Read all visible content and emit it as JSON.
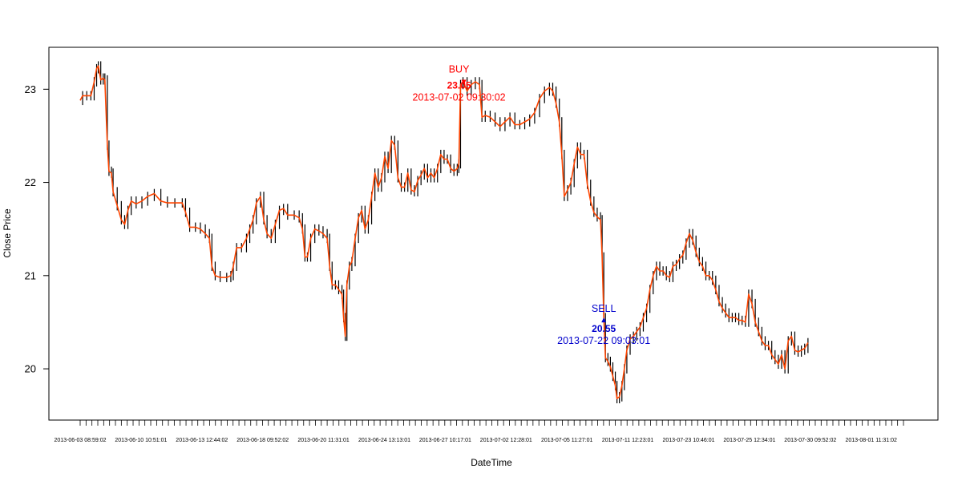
{
  "chart_data": {
    "type": "line",
    "title": "",
    "xlabel": "DateTime",
    "ylabel": "Close Price",
    "ylim": [
      19.45,
      23.45
    ],
    "yticks": [
      20,
      21,
      22,
      23
    ],
    "x_tick_labels": [
      "2013-06-03 08:59:02",
      "2013-06-10 10:51:01",
      "2013-06-13 12:44:02",
      "2013-06-18 09:52:02",
      "2013-06-20 11:31:01",
      "2013-06-24 13:13:01",
      "2013-06-27 10:17:01",
      "2013-07-02 12:28:01",
      "2013-07-05 11:27:01",
      "2013-07-11 12:23:01",
      "2013-07-23 10:46:01",
      "2013-07-25 12:34:01",
      "2013-07-30 09:52:02",
      "2013-08-01 11:31:02"
    ],
    "grid": false,
    "series": [
      {
        "color": "#ff4500",
        "range_color": "#000000",
        "points": [
          [
            0.0,
            22.88
          ],
          [
            0.003,
            22.93
          ],
          [
            0.008,
            22.93
          ],
          [
            0.013,
            22.93
          ],
          [
            0.017,
            23.08
          ],
          [
            0.02,
            23.22
          ],
          [
            0.022,
            23.25
          ],
          [
            0.025,
            23.1
          ],
          [
            0.028,
            23.12
          ],
          [
            0.03,
            23.1
          ],
          [
            0.033,
            22.4
          ],
          [
            0.035,
            22.12
          ],
          [
            0.038,
            22.1
          ],
          [
            0.04,
            21.9
          ],
          [
            0.045,
            21.75
          ],
          [
            0.05,
            21.6
          ],
          [
            0.054,
            21.55
          ],
          [
            0.058,
            21.7
          ],
          [
            0.062,
            21.8
          ],
          [
            0.068,
            21.77
          ],
          [
            0.075,
            21.8
          ],
          [
            0.082,
            21.85
          ],
          [
            0.09,
            21.88
          ],
          [
            0.098,
            21.8
          ],
          [
            0.106,
            21.78
          ],
          [
            0.115,
            21.78
          ],
          [
            0.124,
            21.78
          ],
          [
            0.128,
            21.68
          ],
          [
            0.133,
            21.52
          ],
          [
            0.14,
            21.52
          ],
          [
            0.146,
            21.5
          ],
          [
            0.152,
            21.45
          ],
          [
            0.157,
            21.4
          ],
          [
            0.16,
            21.1
          ],
          [
            0.164,
            21.0
          ],
          [
            0.17,
            20.98
          ],
          [
            0.178,
            20.98
          ],
          [
            0.183,
            21.0
          ],
          [
            0.186,
            21.1
          ],
          [
            0.19,
            21.3
          ],
          [
            0.196,
            21.3
          ],
          [
            0.202,
            21.4
          ],
          [
            0.206,
            21.5
          ],
          [
            0.21,
            21.6
          ],
          [
            0.214,
            21.78
          ],
          [
            0.219,
            21.85
          ],
          [
            0.223,
            21.6
          ],
          [
            0.227,
            21.45
          ],
          [
            0.232,
            21.4
          ],
          [
            0.237,
            21.55
          ],
          [
            0.242,
            21.7
          ],
          [
            0.247,
            21.72
          ],
          [
            0.252,
            21.65
          ],
          [
            0.26,
            21.65
          ],
          [
            0.266,
            21.62
          ],
          [
            0.27,
            21.5
          ],
          [
            0.273,
            21.2
          ],
          [
            0.276,
            21.2
          ],
          [
            0.28,
            21.4
          ],
          [
            0.285,
            21.5
          ],
          [
            0.29,
            21.48
          ],
          [
            0.295,
            21.45
          ],
          [
            0.3,
            21.4
          ],
          [
            0.303,
            21.1
          ],
          [
            0.306,
            20.9
          ],
          [
            0.31,
            20.9
          ],
          [
            0.314,
            20.85
          ],
          [
            0.318,
            20.8
          ],
          [
            0.32,
            20.55
          ],
          [
            0.322,
            20.35
          ],
          [
            0.324,
            20.9
          ],
          [
            0.327,
            21.1
          ],
          [
            0.33,
            21.15
          ],
          [
            0.334,
            21.4
          ],
          [
            0.338,
            21.62
          ],
          [
            0.342,
            21.7
          ],
          [
            0.346,
            21.5
          ],
          [
            0.35,
            21.6
          ],
          [
            0.354,
            21.85
          ],
          [
            0.358,
            22.1
          ],
          [
            0.362,
            21.95
          ],
          [
            0.366,
            22.05
          ],
          [
            0.37,
            22.28
          ],
          [
            0.374,
            22.15
          ],
          [
            0.378,
            22.45
          ],
          [
            0.382,
            22.4
          ],
          [
            0.386,
            22.05
          ],
          [
            0.39,
            21.95
          ],
          [
            0.394,
            21.95
          ],
          [
            0.398,
            22.1
          ],
          [
            0.402,
            21.92
          ],
          [
            0.406,
            21.9
          ],
          [
            0.41,
            22.02
          ],
          [
            0.414,
            22.08
          ],
          [
            0.418,
            22.15
          ],
          [
            0.422,
            22.05
          ],
          [
            0.426,
            22.1
          ],
          [
            0.43,
            22.05
          ],
          [
            0.434,
            22.15
          ],
          [
            0.438,
            22.3
          ],
          [
            0.442,
            22.25
          ],
          [
            0.446,
            22.25
          ],
          [
            0.45,
            22.15
          ],
          [
            0.454,
            22.12
          ],
          [
            0.458,
            22.15
          ],
          [
            0.46,
            22.2
          ],
          [
            0.462,
            23.05
          ],
          [
            0.465,
            23.08
          ],
          [
            0.47,
            22.98
          ],
          [
            0.475,
            23.05
          ],
          [
            0.48,
            23.08
          ],
          [
            0.485,
            23.05
          ],
          [
            0.488,
            22.7
          ],
          [
            0.492,
            22.72
          ],
          [
            0.498,
            22.7
          ],
          [
            0.504,
            22.65
          ],
          [
            0.51,
            22.6
          ],
          [
            0.516,
            22.65
          ],
          [
            0.522,
            22.7
          ],
          [
            0.528,
            22.62
          ],
          [
            0.534,
            22.62
          ],
          [
            0.54,
            22.65
          ],
          [
            0.546,
            22.68
          ],
          [
            0.552,
            22.75
          ],
          [
            0.558,
            22.9
          ],
          [
            0.564,
            22.98
          ],
          [
            0.57,
            23.02
          ],
          [
            0.574,
            22.98
          ],
          [
            0.578,
            22.85
          ],
          [
            0.582,
            22.65
          ],
          [
            0.585,
            22.3
          ],
          [
            0.588,
            21.85
          ],
          [
            0.592,
            21.92
          ],
          [
            0.596,
            22.0
          ],
          [
            0.6,
            22.2
          ],
          [
            0.604,
            22.38
          ],
          [
            0.608,
            22.3
          ],
          [
            0.612,
            22.3
          ],
          [
            0.616,
            21.98
          ],
          [
            0.62,
            21.8
          ],
          [
            0.624,
            21.68
          ],
          [
            0.628,
            21.63
          ],
          [
            0.632,
            21.6
          ],
          [
            0.634,
            21.2
          ],
          [
            0.636,
            20.55
          ],
          [
            0.638,
            20.12
          ],
          [
            0.641,
            20.08
          ],
          [
            0.644,
            20.02
          ],
          [
            0.647,
            19.92
          ],
          [
            0.65,
            19.82
          ],
          [
            0.652,
            19.68
          ],
          [
            0.655,
            19.7
          ],
          [
            0.658,
            19.82
          ],
          [
            0.661,
            20.0
          ],
          [
            0.664,
            20.2
          ],
          [
            0.668,
            20.32
          ],
          [
            0.672,
            20.35
          ],
          [
            0.676,
            20.4
          ],
          [
            0.68,
            20.45
          ],
          [
            0.684,
            20.55
          ],
          [
            0.688,
            20.65
          ],
          [
            0.692,
            20.85
          ],
          [
            0.696,
            21.0
          ],
          [
            0.7,
            21.1
          ],
          [
            0.704,
            21.05
          ],
          [
            0.708,
            21.05
          ],
          [
            0.712,
            21.0
          ],
          [
            0.716,
            20.98
          ],
          [
            0.72,
            21.1
          ],
          [
            0.724,
            21.12
          ],
          [
            0.728,
            21.18
          ],
          [
            0.732,
            21.22
          ],
          [
            0.736,
            21.35
          ],
          [
            0.74,
            21.45
          ],
          [
            0.744,
            21.38
          ],
          [
            0.748,
            21.25
          ],
          [
            0.752,
            21.15
          ],
          [
            0.756,
            21.1
          ],
          [
            0.76,
            21.0
          ],
          [
            0.764,
            21.0
          ],
          [
            0.768,
            20.95
          ],
          [
            0.772,
            20.85
          ],
          [
            0.776,
            20.72
          ],
          [
            0.78,
            20.65
          ],
          [
            0.784,
            20.6
          ],
          [
            0.788,
            20.55
          ],
          [
            0.792,
            20.55
          ],
          [
            0.796,
            20.55
          ],
          [
            0.8,
            20.52
          ],
          [
            0.804,
            20.52
          ],
          [
            0.808,
            20.5
          ],
          [
            0.812,
            20.8
          ],
          [
            0.816,
            20.7
          ],
          [
            0.82,
            20.5
          ],
          [
            0.824,
            20.4
          ],
          [
            0.828,
            20.3
          ],
          [
            0.832,
            20.25
          ],
          [
            0.836,
            20.25
          ],
          [
            0.84,
            20.15
          ],
          [
            0.844,
            20.1
          ],
          [
            0.848,
            20.05
          ],
          [
            0.852,
            20.15
          ],
          [
            0.856,
            20.0
          ],
          [
            0.86,
            20.3
          ],
          [
            0.864,
            20.35
          ],
          [
            0.868,
            20.2
          ],
          [
            0.872,
            20.18
          ],
          [
            0.876,
            20.2
          ],
          [
            0.88,
            20.22
          ],
          [
            0.884,
            20.28
          ]
        ]
      }
    ],
    "annotations": [
      {
        "label": "BUY",
        "value": "23.05",
        "date": "2013-07-02 09:30:02",
        "color": "#ff0000",
        "x": 0.466,
        "y": 23.05,
        "dir": "down"
      },
      {
        "label": "SELL",
        "value": "20.55",
        "date": "2013-07-22 09:03:01",
        "color": "#0000cc",
        "x": 0.636,
        "y": 20.55,
        "dir": "up"
      }
    ]
  }
}
